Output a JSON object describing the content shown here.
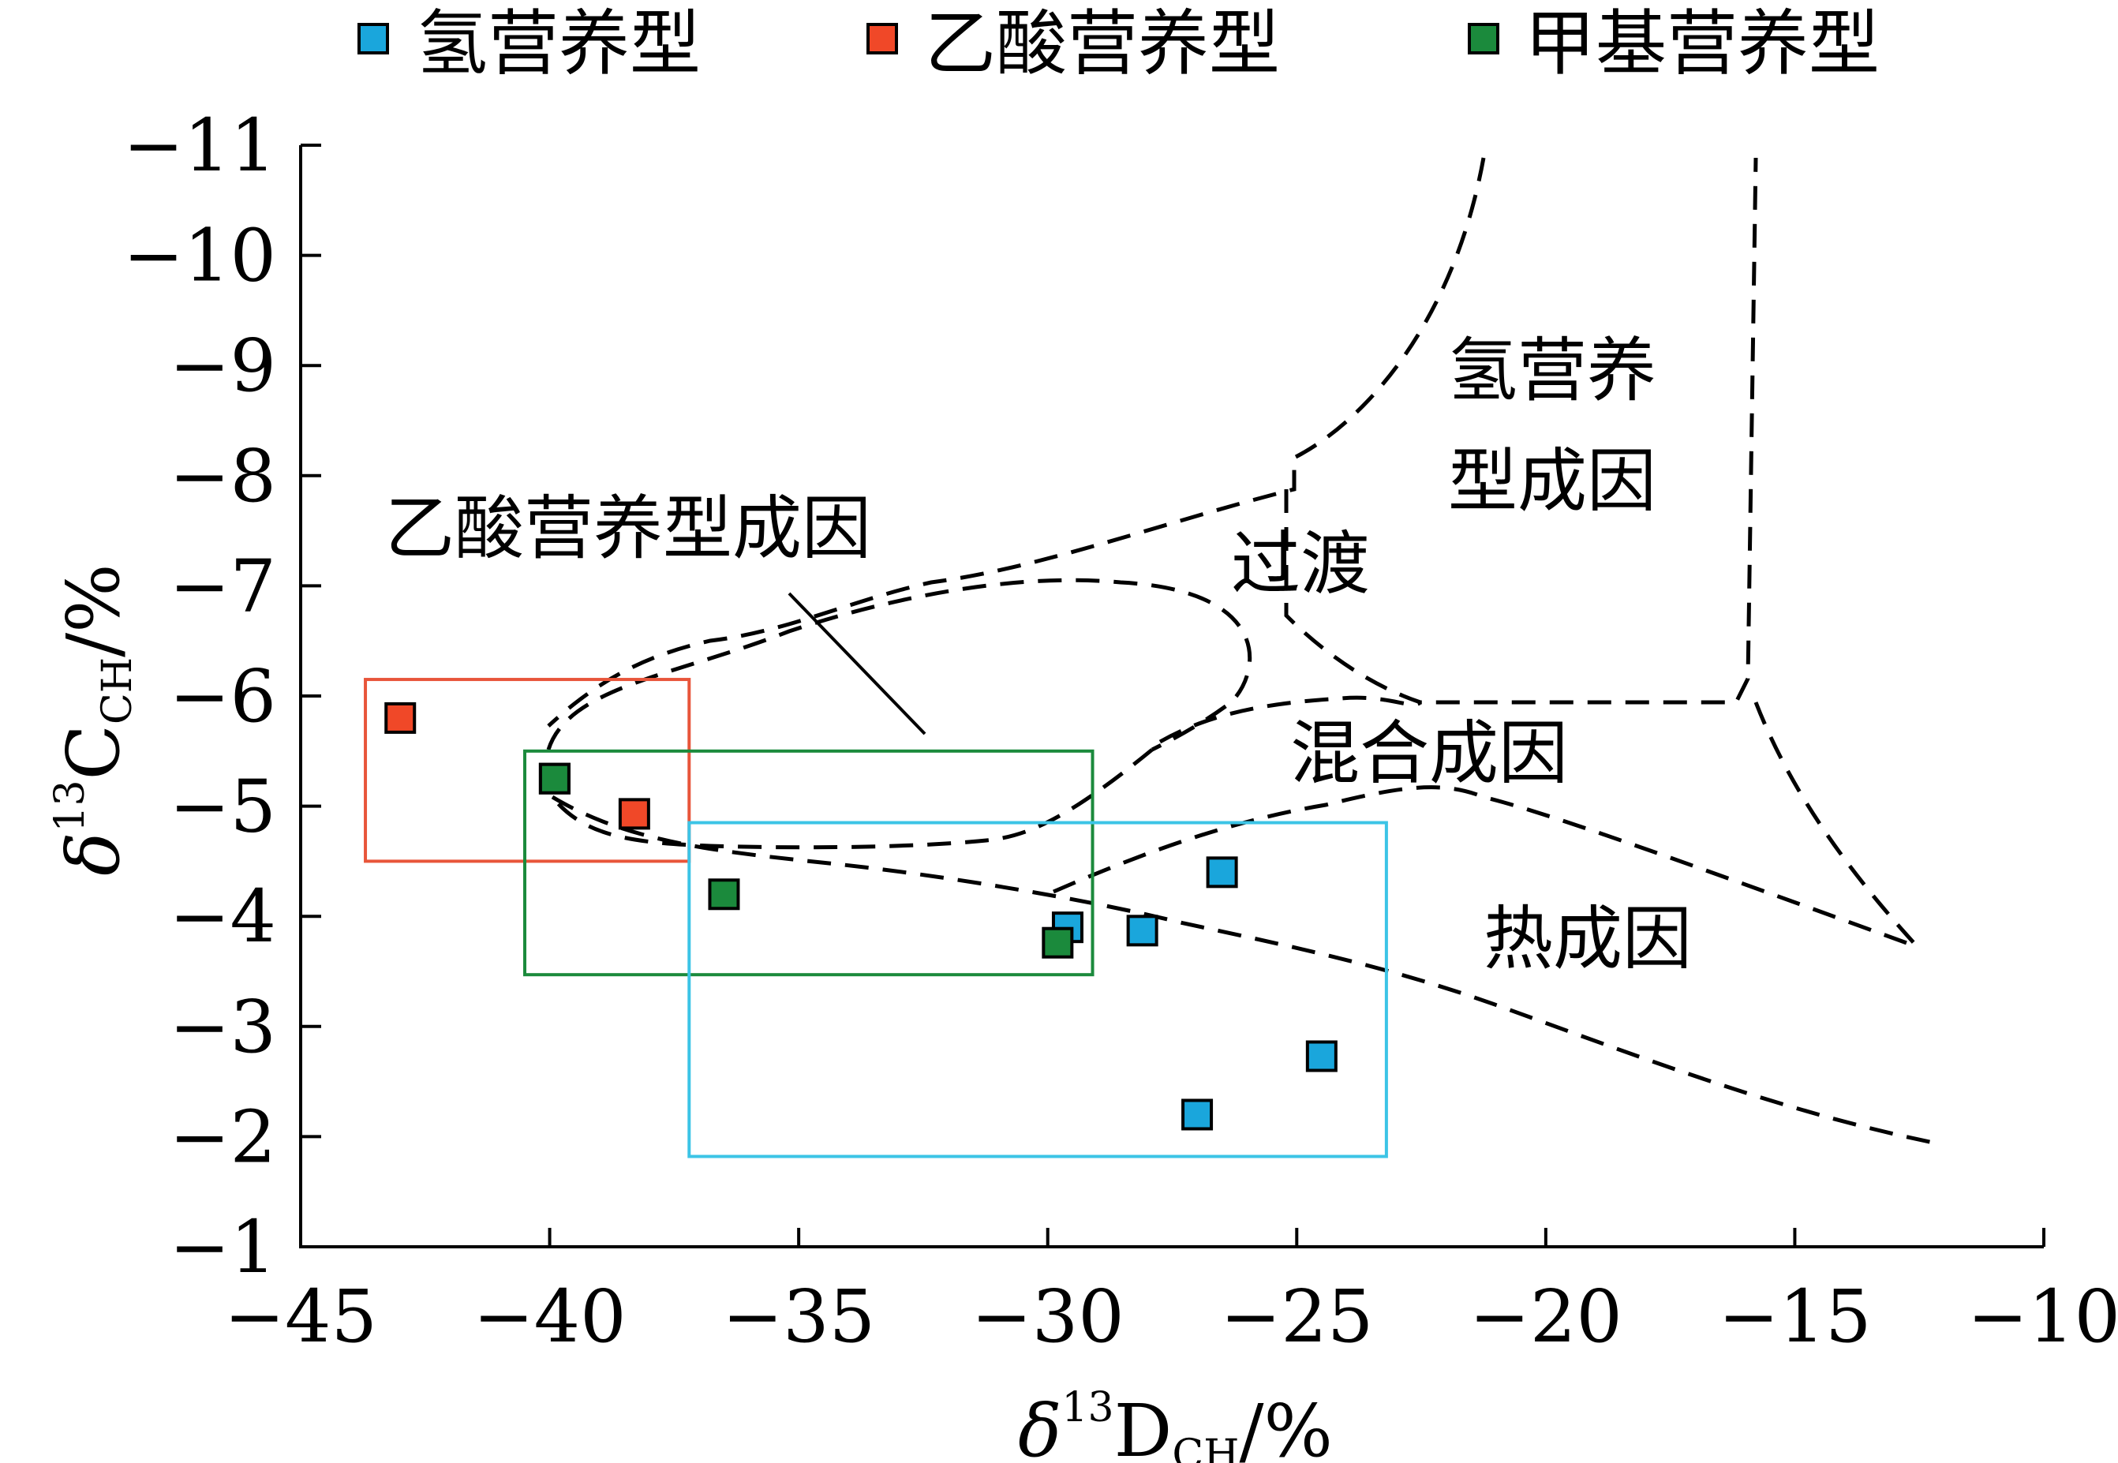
{
  "chart_data": {
    "type": "scatter",
    "xlabel": {
      "main": "δ",
      "sup": "13",
      "rest": "D",
      "sub": "CH",
      "unit": "/%"
    },
    "ylabel": {
      "main": "δ",
      "sup": "13",
      "rest": "C",
      "sub": "CH",
      "unit": "/%"
    },
    "xlim": [
      -45,
      -10
    ],
    "ylim": [
      -1,
      -11
    ],
    "x_ticks": [
      -45,
      -40,
      -35,
      -30,
      -25,
      -20,
      -15,
      -10
    ],
    "y_ticks": [
      -1,
      -2,
      -3,
      -4,
      -5,
      -6,
      -7,
      -8,
      -9,
      -10,
      -11
    ],
    "tick_label_style": "minus sign",
    "grid": false,
    "legend_position": "top",
    "series": [
      {
        "name": "氢营养型",
        "color": "#1aa6dc",
        "points": [
          [
            -29.6,
            -3.9
          ],
          [
            -28.1,
            -3.87
          ],
          [
            -26.5,
            -4.4
          ],
          [
            -27.0,
            -2.2
          ],
          [
            -24.5,
            -2.73
          ]
        ]
      },
      {
        "name": "乙酸营养型",
        "color": "#f04828",
        "points": [
          [
            -43.0,
            -5.8
          ],
          [
            -39.9,
            -5.25
          ],
          [
            -38.3,
            -4.93
          ]
        ]
      },
      {
        "name": "甲基营养型",
        "color": "#1b8a3c",
        "points": [
          [
            -39.9,
            -5.25
          ],
          [
            -36.5,
            -4.2
          ],
          [
            -29.8,
            -3.76
          ]
        ]
      }
    ],
    "boxes": [
      {
        "series": "乙酸营养型",
        "x": [
          -43.7,
          -37.2
        ],
        "y": [
          -4.5,
          -6.15
        ],
        "color": "#e8553a"
      },
      {
        "series": "甲基营养型",
        "x": [
          -40.5,
          -29.1
        ],
        "y": [
          -3.47,
          -5.5
        ],
        "color": "#1b8a3c"
      },
      {
        "series": "氢营养型",
        "x": [
          -37.2,
          -23.2
        ],
        "y": [
          -1.82,
          -4.85
        ],
        "color": "#3cc4e6"
      }
    ],
    "region_labels": {
      "hydrogen": [
        "氢营养",
        "型成因"
      ],
      "acetate": "乙酸营养型成因",
      "transition": "过渡",
      "mixed": "混合成因",
      "thermal": "热成因"
    },
    "tick_text": {
      "x": [
        "−45",
        "−40",
        "−35",
        "−30",
        "−25",
        "−20",
        "−15",
        "−10"
      ],
      "y": [
        "−1",
        "−2",
        "−3",
        "−4",
        "−5",
        "−6",
        "−7",
        "−8",
        "−9",
        "−10",
        "−11"
      ]
    }
  }
}
